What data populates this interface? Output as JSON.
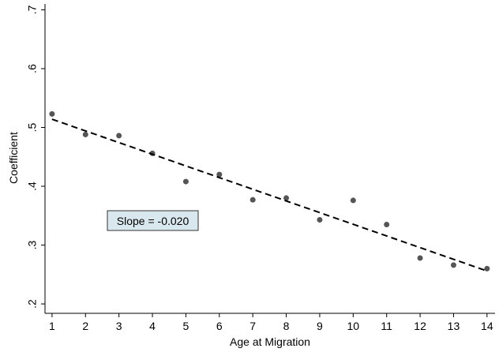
{
  "chart_data": {
    "type": "scatter",
    "x_label": "Age at Migration",
    "y_label": "Coefficient",
    "annotation": "Slope = -0.020",
    "series": [
      {
        "x": [
          1,
          2,
          3,
          4,
          5,
          6,
          7,
          8,
          9,
          10,
          11,
          12,
          13,
          14
        ],
        "values": [
          0.523,
          0.488,
          0.486,
          0.456,
          0.408,
          0.42,
          0.377,
          0.38,
          0.343,
          0.376,
          0.335,
          0.278,
          0.266,
          0.26
        ],
        "color": "#555555"
      },
      {
        "x": [
          1,
          14
        ],
        "values": [
          0.514,
          0.256
        ],
        "color": "#000000",
        "style": "dashed"
      }
    ],
    "xlim": [
      0.79,
      14.24
    ],
    "ylim": [
      0.184,
      0.71
    ],
    "xticks": [
      1,
      2,
      3,
      4,
      5,
      6,
      7,
      8,
      9,
      10,
      11,
      12,
      13,
      14
    ],
    "yticks": [
      {
        "value": 0.2,
        "label": ".2"
      },
      {
        "value": 0.3,
        "label": ".3"
      },
      {
        "value": 0.4,
        "label": ".4"
      },
      {
        "value": 0.5,
        "label": ".5"
      },
      {
        "value": 0.6,
        "label": ".6"
      },
      {
        "value": 0.7,
        "label": ".7"
      }
    ]
  }
}
